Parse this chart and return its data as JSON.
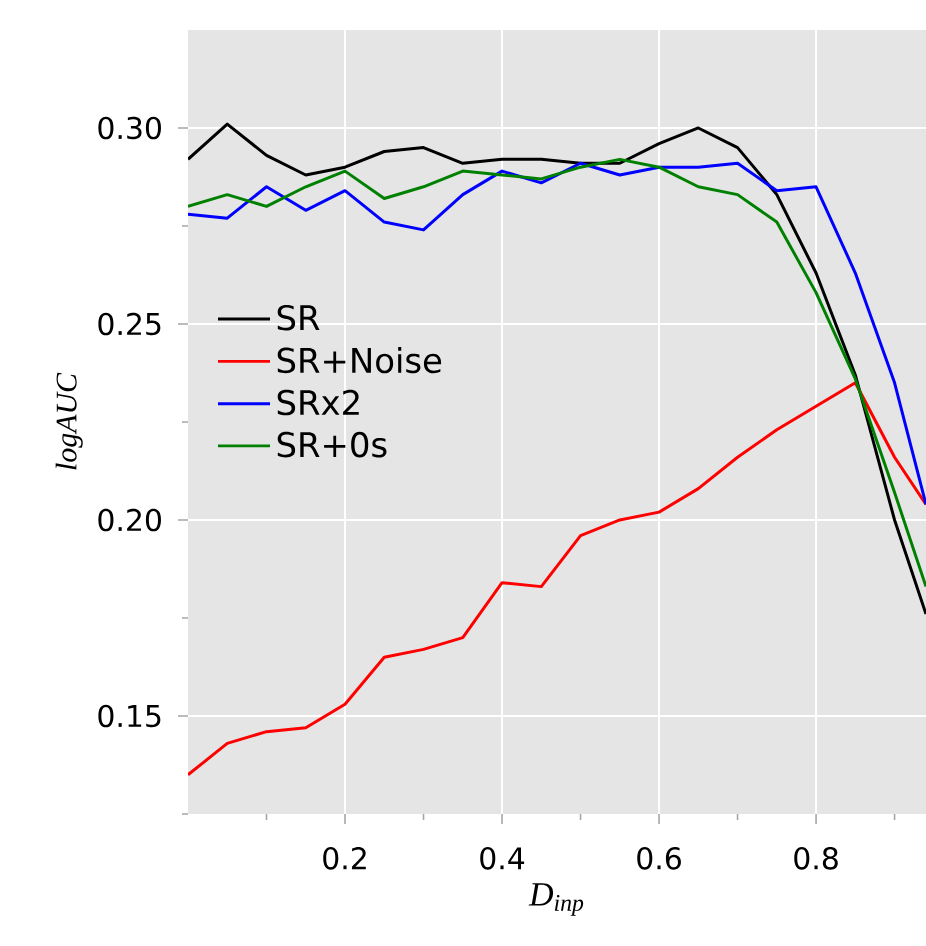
{
  "chart_data": {
    "type": "line",
    "xlabel": "D$_{inp}$",
    "ylabel": "logAUC",
    "x": [
      0,
      0.05,
      0.1,
      0.15,
      0.2,
      0.25,
      0.3,
      0.35,
      0.4,
      0.45,
      0.5,
      0.55,
      0.6,
      0.65,
      0.7,
      0.75,
      0.8,
      0.85,
      0.9,
      0.94
    ],
    "series": [
      {
        "name": "SR",
        "color": "#000000",
        "values": [
          0.292,
          0.301,
          0.293,
          0.288,
          0.29,
          0.294,
          0.295,
          0.291,
          0.292,
          0.292,
          0.291,
          0.291,
          0.296,
          0.3,
          0.295,
          0.283,
          0.263,
          0.237,
          0.2,
          0.176
        ]
      },
      {
        "name": "SR+Noise",
        "color": "#ff0000",
        "values": [
          0.135,
          0.143,
          0.146,
          0.147,
          0.153,
          0.165,
          0.167,
          0.17,
          0.184,
          0.183,
          0.196,
          0.2,
          0.202,
          0.208,
          0.216,
          0.223,
          0.229,
          0.235,
          0.216,
          0.204
        ]
      },
      {
        "name": "SRx2",
        "color": "#0000ff",
        "values": [
          0.278,
          0.277,
          0.285,
          0.279,
          0.284,
          0.276,
          0.274,
          0.283,
          0.289,
          0.286,
          0.291,
          0.288,
          0.29,
          0.29,
          0.291,
          0.284,
          0.285,
          0.263,
          0.235,
          0.204
        ]
      },
      {
        "name": "SR+0s",
        "color": "#008000",
        "values": [
          0.28,
          0.283,
          0.28,
          0.285,
          0.289,
          0.282,
          0.285,
          0.289,
          0.288,
          0.287,
          0.29,
          0.292,
          0.29,
          0.285,
          0.283,
          0.276,
          0.258,
          0.236,
          0.207,
          0.183
        ]
      }
    ],
    "xlim": [
      0,
      0.94
    ],
    "ylim": [
      0.125,
      0.325
    ],
    "xticks": [
      {
        "value": 0.1,
        "label": null
      },
      0.2,
      {
        "value": 0.3,
        "label": null
      },
      0.4,
      {
        "value": 0.5,
        "label": null
      },
      0.6,
      {
        "value": 0.7,
        "label": null
      },
      0.8,
      {
        "value": 0.9,
        "label": null
      }
    ],
    "yticks": [
      {
        "value": 0.125,
        "label": null
      },
      {
        "value": 0.15,
        "label": "0.15"
      },
      {
        "value": 0.175,
        "label": null
      },
      {
        "value": 0.2,
        "label": "0.20"
      },
      {
        "value": 0.225,
        "label": null
      },
      {
        "value": 0.25,
        "label": "0.25"
      },
      {
        "value": 0.275,
        "label": null
      },
      {
        "value": 0.3,
        "label": "0.30"
      }
    ],
    "grid": true,
    "legend": "left",
    "marker": "none",
    "line_style": "solid"
  }
}
